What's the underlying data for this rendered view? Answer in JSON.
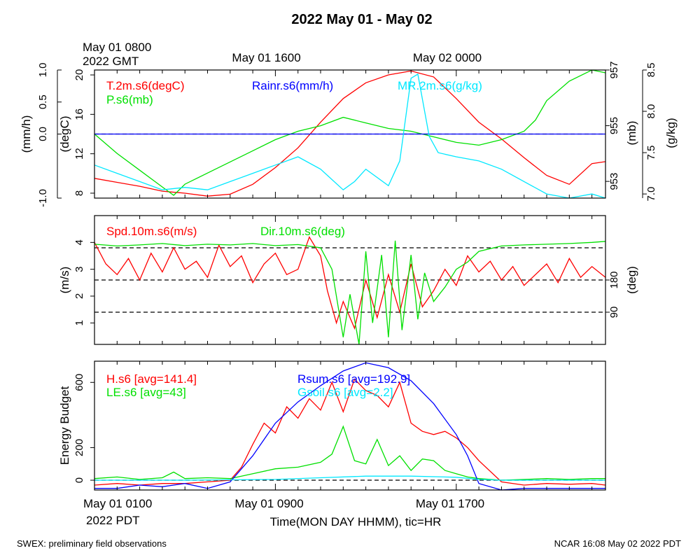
{
  "colors": {
    "red": "#ff0000",
    "green": "#00e000",
    "blue": "#0000ff",
    "cyan": "#00e8ff",
    "black": "#000000"
  },
  "title": "2022 May 01 - May 02",
  "top_time_labels": [
    {
      "lines": [
        "May 01 0800",
        "2022 GMT"
      ],
      "hour": 0
    },
    {
      "lines": [
        "May 01 1600"
      ],
      "hour": 8
    },
    {
      "lines": [
        "May 02 0000"
      ],
      "hour": 16
    }
  ],
  "bottom_time_labels": [
    {
      "lines": [
        "May 01 0100",
        "2022 PDT"
      ],
      "hour": 0
    },
    {
      "lines": [
        "May 01 0900"
      ],
      "hour": 8
    },
    {
      "lines": [
        "May 01 1700"
      ],
      "hour": 16
    }
  ],
  "xlabel": "Time(MON DAY HHMM), tic=HR",
  "footer_left": "SWEX: preliminary field observations",
  "footer_right": "NCAR 16:08 May 02 2022 PDT",
  "chart_data": [
    {
      "type": "line",
      "panel": "top",
      "x_unit": "hours since May 01 0100 PDT",
      "xlim": [
        0,
        22.6
      ],
      "axes": {
        "rain": {
          "label": "(mm/h)",
          "lim": [
            -1.0,
            1.0
          ],
          "ticks": [
            "-1.0",
            "0.0",
            "0.5",
            "1.0"
          ],
          "tick_values": [
            -1.0,
            0.0,
            0.5,
            1.0
          ],
          "side": "left-outer"
        },
        "temp": {
          "label": "(degC)",
          "lim": [
            7.5,
            20.5
          ],
          "ticks": [
            "8",
            "12",
            "16",
            "20"
          ],
          "tick_values": [
            8,
            12,
            16,
            20
          ],
          "side": "left-inner"
        },
        "pres": {
          "label": "(mb)",
          "lim": [
            952.4,
            957.0
          ],
          "ticks": [
            "953",
            "955",
            "957"
          ],
          "tick_values": [
            953,
            955,
            957
          ],
          "side": "right-inner"
        },
        "mr": {
          "label": "(g/kg)",
          "lim": [
            6.95,
            8.5
          ],
          "ticks": [
            "7.0",
            "7.5",
            "8.0",
            "8.5"
          ],
          "tick_values": [
            7.0,
            7.5,
            8.0,
            8.5
          ],
          "side": "right-outer"
        }
      },
      "legend": [
        {
          "text": "T.2m.s6(degC)",
          "color": "#ff0000"
        },
        {
          "text": "P.s6(mb)",
          "color": "#00e000"
        },
        {
          "text": "Rainr.s6(mm/h)",
          "color": "#0000ff"
        },
        {
          "text": "MR.2m.s6(g/kg)",
          "color": "#00e8ff"
        }
      ],
      "series": [
        {
          "name": "T.2m.s6(degC)",
          "axis": "temp",
          "color": "#ff0000",
          "x": [
            0,
            1,
            2,
            3,
            4,
            5,
            6,
            7,
            8,
            9,
            10,
            11,
            12,
            13,
            14,
            15,
            16,
            17,
            18,
            19,
            20,
            21,
            22,
            22.6
          ],
          "y": [
            9.5,
            9.1,
            8.7,
            8.2,
            8.0,
            7.7,
            7.9,
            8.9,
            10.6,
            12.6,
            15.2,
            17.6,
            19.2,
            20.0,
            20.4,
            19.8,
            17.6,
            15.2,
            13.5,
            11.6,
            9.8,
            8.9,
            11.0,
            11.2
          ]
        },
        {
          "name": "P.s6(mb)",
          "axis": "pres",
          "color": "#00e000",
          "x": [
            0,
            1,
            2,
            3,
            3.5,
            4,
            5,
            6,
            7,
            8,
            9,
            10,
            11,
            12,
            13,
            14,
            15,
            16,
            17,
            18,
            19,
            19.5,
            20,
            21,
            22,
            22.6
          ],
          "y": [
            954.7,
            954.0,
            953.4,
            952.8,
            952.5,
            952.9,
            953.3,
            953.7,
            954.1,
            954.5,
            954.8,
            955.0,
            955.3,
            955.1,
            954.9,
            954.8,
            954.6,
            954.4,
            954.3,
            954.5,
            954.8,
            955.2,
            955.9,
            956.6,
            957.0,
            956.9
          ]
        },
        {
          "name": "Rainr.s6(mm/h)",
          "axis": "rain",
          "color": "#0000ff",
          "x": [
            0,
            22.6
          ],
          "y": [
            0.0,
            0.0
          ]
        },
        {
          "name": "MR.2m.s6(g/kg)",
          "axis": "mr",
          "color": "#00e8ff",
          "x": [
            0,
            1,
            2,
            3,
            4,
            5,
            6,
            7,
            8,
            9,
            10,
            11,
            11.5,
            12,
            13,
            13.5,
            14,
            14.3,
            14.8,
            15.2,
            16,
            17,
            18,
            19,
            20,
            21,
            22,
            22.6
          ],
          "y": [
            7.35,
            7.25,
            7.15,
            7.05,
            7.08,
            7.05,
            7.15,
            7.25,
            7.35,
            7.45,
            7.3,
            7.05,
            7.15,
            7.3,
            7.1,
            7.4,
            8.4,
            8.45,
            7.7,
            7.5,
            7.45,
            7.4,
            7.3,
            7.15,
            7.0,
            6.95,
            7.0,
            6.95
          ]
        }
      ]
    },
    {
      "type": "line",
      "panel": "middle",
      "x_unit": "hours since May 01 0100 PDT",
      "xlim": [
        0,
        22.6
      ],
      "axes": {
        "spd": {
          "label": "(m/s)",
          "lim": [
            0.2,
            5.0
          ],
          "ticks": [
            "1",
            "2",
            "3",
            "4"
          ],
          "tick_values": [
            1,
            2,
            3,
            4
          ],
          "side": "left"
        },
        "dir": {
          "label": "(deg)",
          "lim": [
            0,
            360
          ],
          "ticks": [
            "90",
            "180"
          ],
          "tick_values": [
            90,
            180
          ],
          "side": "right"
        }
      },
      "reference_lines_deg": [
        90,
        180,
        270
      ],
      "legend": [
        {
          "text": "Spd.10m.s6(m/s)",
          "color": "#ff0000"
        },
        {
          "text": "Dir.10m.s6(deg)",
          "color": "#00e000"
        }
      ],
      "series": [
        {
          "name": "Spd.10m.s6(m/s)",
          "axis": "spd",
          "color": "#ff0000",
          "x": [
            0,
            0.5,
            1,
            1.5,
            2,
            2.5,
            3,
            3.5,
            4,
            4.5,
            5,
            5.5,
            6,
            6.5,
            7,
            7.5,
            8,
            8.5,
            9,
            9.5,
            10,
            10.3,
            10.7,
            11,
            11.5,
            12,
            12.5,
            13,
            13.5,
            14,
            14.5,
            15,
            15.5,
            16,
            16.5,
            17,
            17.5,
            18,
            18.5,
            19,
            19.5,
            20,
            20.5,
            21,
            21.5,
            22,
            22.6
          ],
          "y": [
            4.0,
            3.2,
            2.8,
            3.4,
            2.6,
            3.6,
            2.9,
            3.8,
            3.0,
            3.3,
            2.7,
            3.9,
            3.1,
            3.5,
            2.5,
            3.2,
            3.6,
            2.8,
            3.0,
            4.2,
            3.5,
            2.2,
            1.0,
            1.8,
            0.8,
            2.6,
            1.2,
            2.8,
            1.4,
            3.2,
            1.6,
            2.2,
            3.0,
            2.4,
            3.5,
            2.9,
            3.3,
            2.6,
            3.1,
            2.4,
            2.8,
            3.2,
            2.5,
            3.4,
            2.7,
            3.1,
            2.7
          ]
        },
        {
          "name": "Dir.10m.s6(deg)",
          "axis": "dir",
          "color": "#00e000",
          "x": [
            0,
            1,
            2,
            3,
            4,
            5,
            6,
            7,
            8,
            9,
            10,
            10.5,
            11,
            11.3,
            11.7,
            12,
            12.3,
            12.7,
            13,
            13.3,
            13.6,
            14,
            14.3,
            14.6,
            15,
            15.5,
            16,
            16.5,
            17,
            18,
            19,
            20,
            21,
            22,
            22.6
          ],
          "y": [
            280,
            275,
            278,
            282,
            276,
            280,
            278,
            282,
            276,
            279,
            270,
            210,
            20,
            140,
            0,
            260,
            60,
            250,
            20,
            290,
            40,
            250,
            70,
            200,
            120,
            160,
            210,
            230,
            260,
            275,
            278,
            280,
            282,
            285,
            288
          ]
        }
      ]
    },
    {
      "type": "line",
      "panel": "bottom",
      "x_unit": "hours since May 01 0100 PDT",
      "xlim": [
        0,
        22.6
      ],
      "ylabel": "Energy Budget",
      "ylim": [
        -60,
        730
      ],
      "yticks": [
        "0",
        "200",
        "600"
      ],
      "ytick_values": [
        0,
        200,
        600
      ],
      "reference_lines": [
        0
      ],
      "legend": [
        {
          "text": "H.s6 [avg=141.4]",
          "color": "#ff0000"
        },
        {
          "text": "LE.s6 [avg=43]",
          "color": "#00e000"
        },
        {
          "text": "Rsum.s6 [avg=192.9]",
          "color": "#0000ff"
        },
        {
          "text": "Gsoil.s6 [avg=2.2]",
          "color": "#00e8ff"
        }
      ],
      "series": [
        {
          "name": "H.s6 [avg=141.4]",
          "color": "#ff0000",
          "x": [
            0,
            1,
            2,
            3,
            4,
            5,
            6,
            6.5,
            7,
            7.5,
            8,
            8.5,
            9,
            9.5,
            10,
            10.5,
            11,
            11.5,
            12,
            12.5,
            13,
            13.5,
            14,
            14.5,
            15,
            15.5,
            16,
            16.5,
            17,
            18,
            19,
            20,
            21,
            22,
            22.6
          ],
          "y": [
            -30,
            -20,
            -30,
            -20,
            -20,
            -10,
            0,
            80,
            220,
            350,
            290,
            450,
            380,
            500,
            430,
            600,
            420,
            620,
            550,
            520,
            450,
            600,
            350,
            300,
            280,
            300,
            260,
            200,
            120,
            -10,
            -30,
            -20,
            -25,
            -20,
            -30
          ]
        },
        {
          "name": "LE.s6 [avg=43]",
          "color": "#00e000",
          "x": [
            0,
            1,
            2,
            3,
            3.5,
            4,
            5,
            6,
            7,
            8,
            9,
            10,
            10.5,
            11,
            11.5,
            12,
            12.5,
            13,
            13.5,
            14,
            14.5,
            15,
            15.5,
            16,
            16.5,
            17,
            18,
            19,
            20,
            21,
            22,
            22.6
          ],
          "y": [
            10,
            20,
            5,
            15,
            50,
            10,
            15,
            10,
            40,
            70,
            80,
            110,
            160,
            330,
            120,
            100,
            250,
            90,
            150,
            60,
            130,
            120,
            60,
            40,
            20,
            10,
            0,
            5,
            10,
            5,
            10,
            10
          ]
        },
        {
          "name": "Rsum.s6 [avg=192.9]",
          "color": "#0000ff",
          "x": [
            0,
            1,
            2,
            3,
            4,
            5,
            6,
            7,
            8,
            9,
            10,
            11,
            12,
            13,
            14,
            15,
            16,
            16.5,
            17,
            18,
            19,
            20,
            21,
            22,
            22.6
          ],
          "y": [
            -50,
            -50,
            -30,
            -40,
            -20,
            -50,
            -10,
            150,
            350,
            480,
            580,
            670,
            720,
            690,
            610,
            470,
            280,
            150,
            -20,
            -60,
            -50,
            -50,
            -50,
            -50,
            -50
          ]
        },
        {
          "name": "Gsoil.s6 [avg=2.2]",
          "color": "#00e8ff",
          "x": [
            0,
            4,
            8,
            10,
            12,
            14,
            16,
            17,
            18,
            22.6
          ],
          "y": [
            0,
            0,
            5,
            15,
            25,
            25,
            18,
            5,
            0,
            0
          ]
        }
      ]
    }
  ]
}
